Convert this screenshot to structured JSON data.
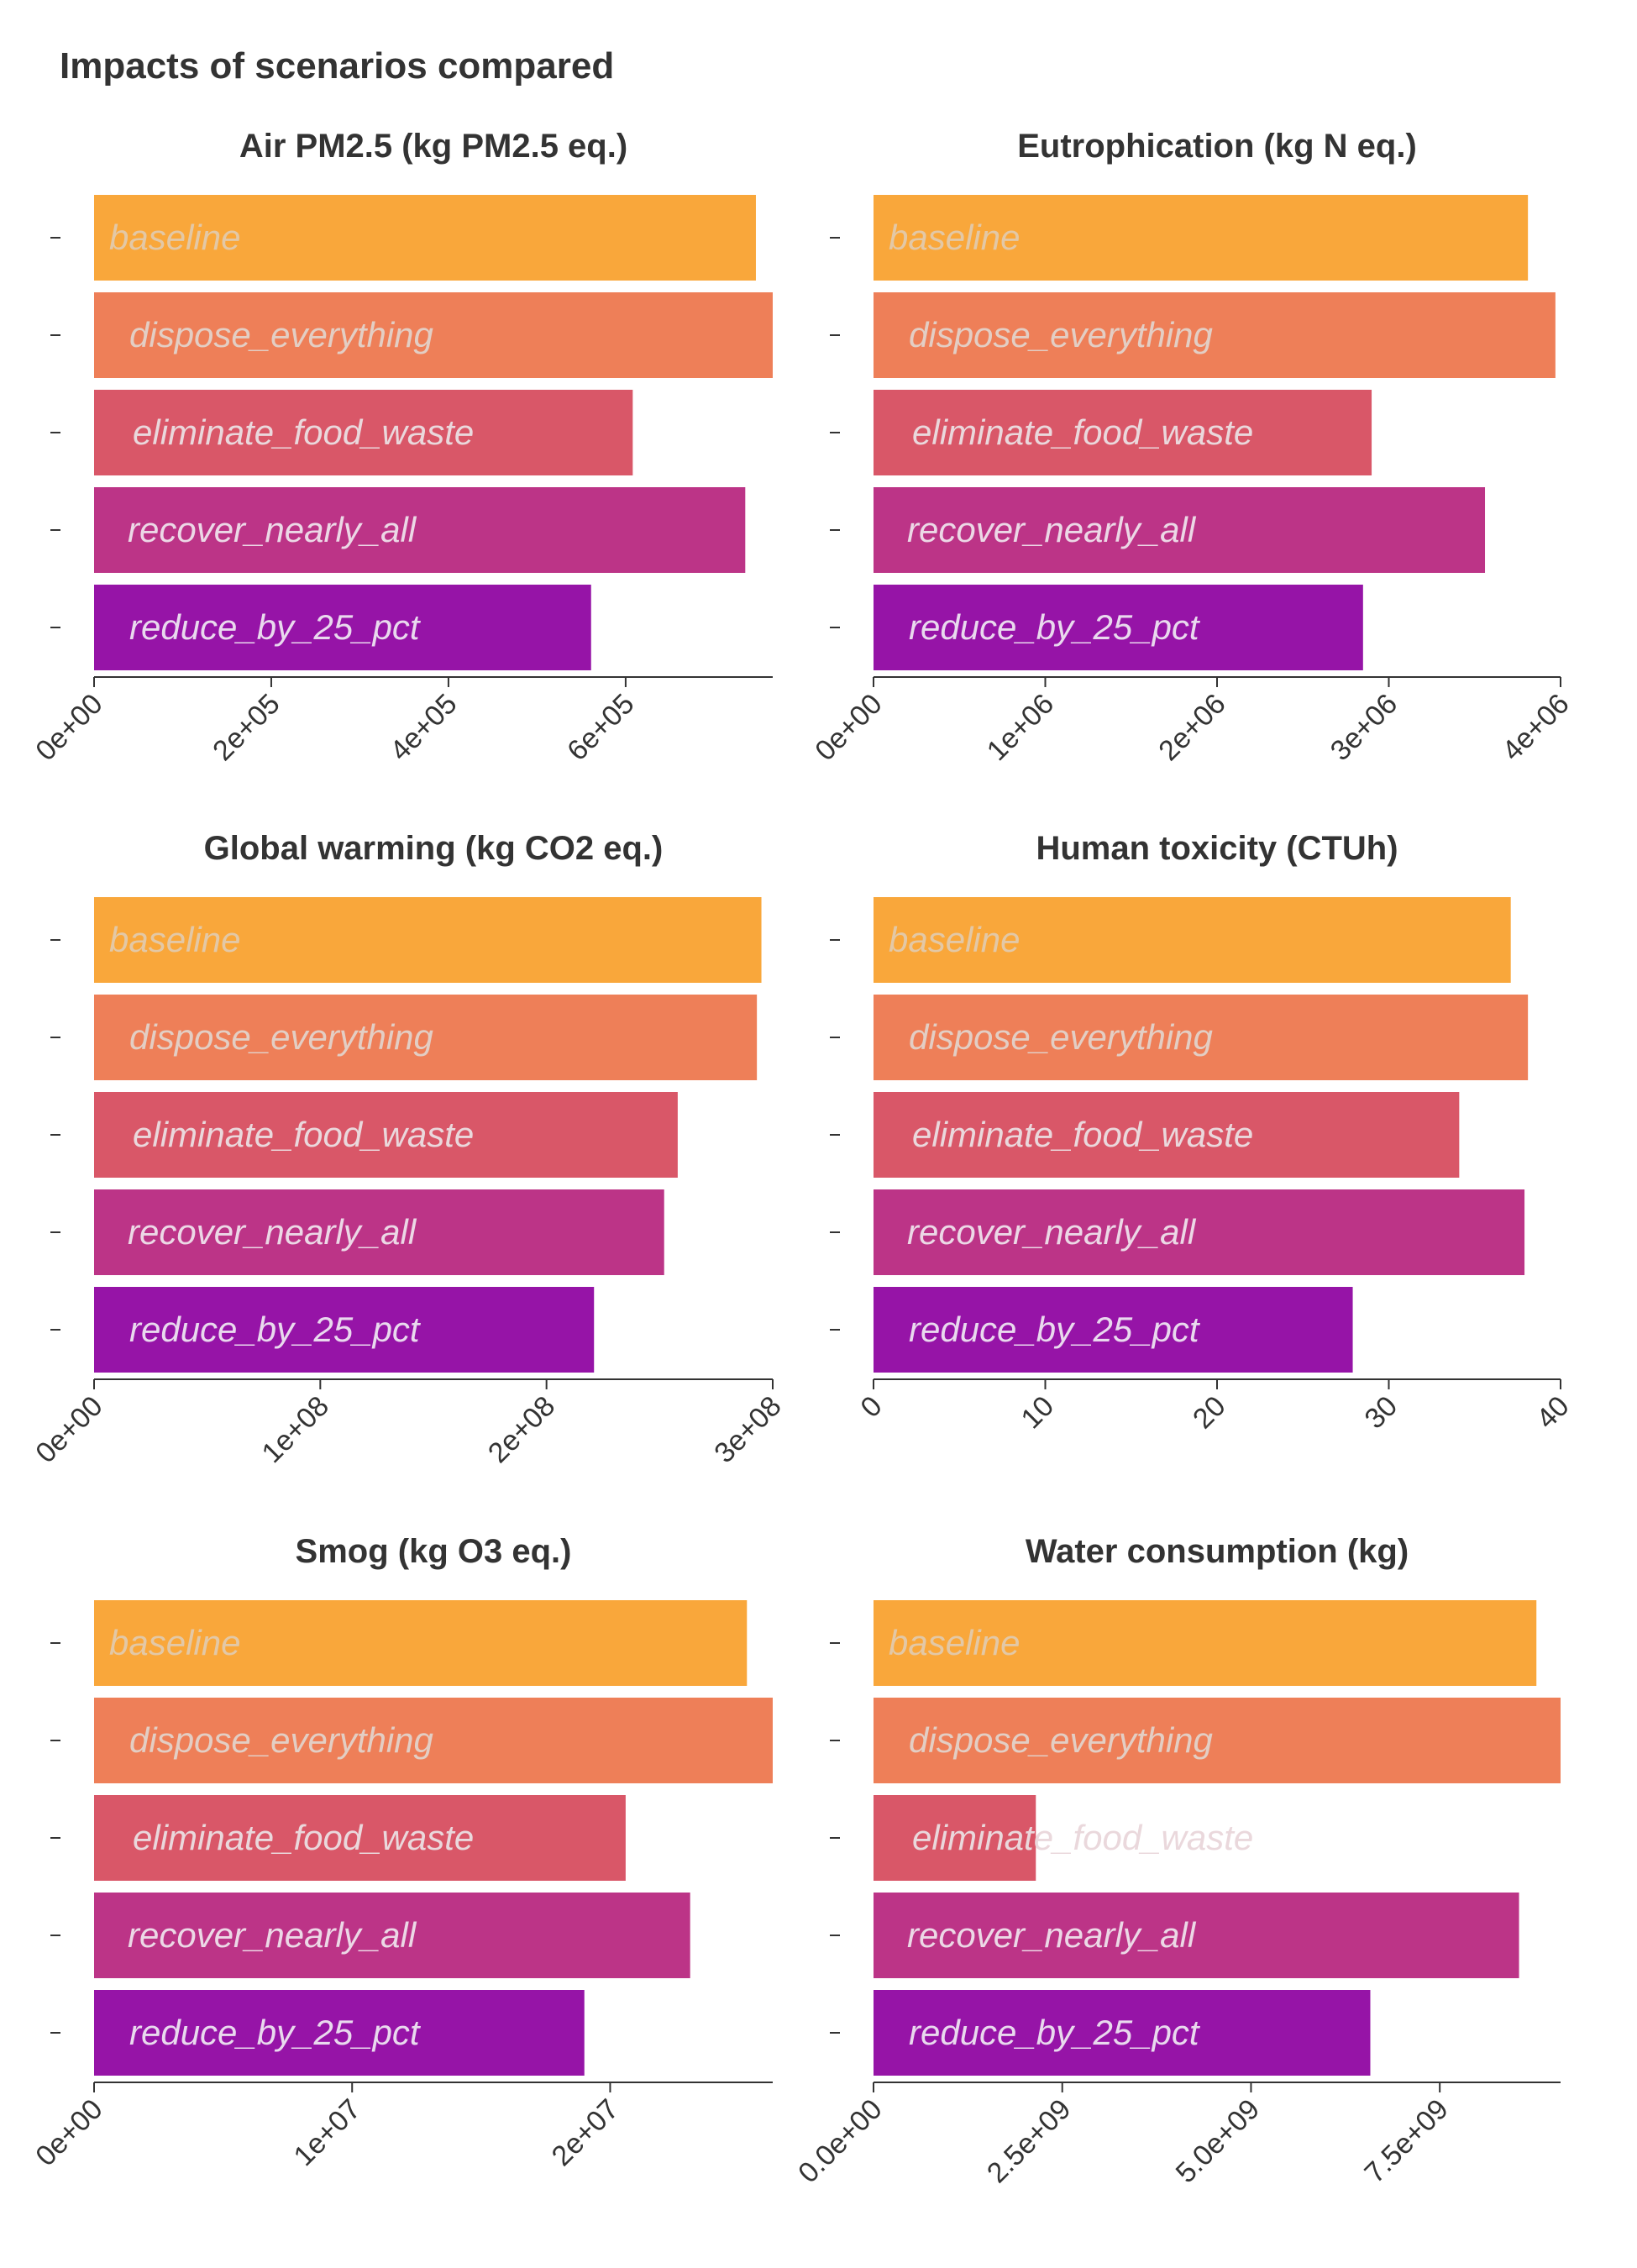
{
  "title": "Impacts of scenarios compared",
  "scenario_colors": {
    "baseline": "#F9A73B",
    "dispose_everything": "#EE7F58",
    "eliminate_food_waste": "#D95768",
    "recover_nearly_all": "#BC3487",
    "reduce_by_25_pct": "#9614A7"
  },
  "chart_data": [
    {
      "type": "bar",
      "title": "Air PM2.5 (kg PM2.5 eq.)",
      "categories": [
        "baseline",
        "dispose_everything",
        "eliminate_food_waste",
        "recover_nearly_all",
        "reduce_by_25_pct"
      ],
      "values": [
        747000,
        766000,
        608000,
        735000,
        561000
      ],
      "xlim": [
        0,
        766000
      ],
      "ticks": [
        0,
        200000,
        400000,
        600000
      ],
      "tick_labels": [
        "0e+00",
        "2e+05",
        "4e+05",
        "6e+05"
      ]
    },
    {
      "type": "bar",
      "title": "Eutrophication (kg N eq.)",
      "categories": [
        "baseline",
        "dispose_everything",
        "eliminate_food_waste",
        "recover_nearly_all",
        "reduce_by_25_pct"
      ],
      "values": [
        3810000,
        3970000,
        2900000,
        3560000,
        2850000
      ],
      "xlim": [
        0,
        4000000
      ],
      "ticks": [
        0,
        1000000,
        2000000,
        3000000,
        4000000
      ],
      "tick_labels": [
        "0e+00",
        "1e+06",
        "2e+06",
        "3e+06",
        "4e+06"
      ]
    },
    {
      "type": "bar",
      "title": "Global warming (kg CO2 eq.)",
      "categories": [
        "baseline",
        "dispose_everything",
        "eliminate_food_waste",
        "recover_nearly_all",
        "reduce_by_25_pct"
      ],
      "values": [
        295000000,
        293000000,
        258000000,
        252000000,
        221000000
      ],
      "xlim": [
        0,
        300000000
      ],
      "ticks": [
        0,
        100000000,
        200000000,
        300000000
      ],
      "tick_labels": [
        "0e+00",
        "1e+08",
        "2e+08",
        "3e+08"
      ]
    },
    {
      "type": "bar",
      "title": "Human toxicity (CTUh)",
      "categories": [
        "baseline",
        "dispose_everything",
        "eliminate_food_waste",
        "recover_nearly_all",
        "reduce_by_25_pct"
      ],
      "values": [
        37.1,
        38.1,
        34.1,
        37.9,
        27.9
      ],
      "xlim": [
        0,
        40
      ],
      "ticks": [
        0,
        10,
        20,
        30,
        40
      ],
      "tick_labels": [
        "0",
        "10",
        "20",
        "30",
        "40"
      ]
    },
    {
      "type": "bar",
      "title": "Smog (kg O3 eq.)",
      "categories": [
        "baseline",
        "dispose_everything",
        "eliminate_food_waste",
        "recover_nearly_all",
        "reduce_by_25_pct"
      ],
      "values": [
        25300000,
        26300000,
        20600000,
        23100000,
        19000000
      ],
      "xlim": [
        0,
        26300000
      ],
      "ticks": [
        0,
        10000000,
        20000000
      ],
      "tick_labels": [
        "0e+00",
        "1e+07",
        "2e+07"
      ]
    },
    {
      "type": "bar",
      "title": "Water consumption (kg)",
      "categories": [
        "baseline",
        "dispose_everything",
        "eliminate_food_waste",
        "recover_nearly_all",
        "reduce_by_25_pct"
      ],
      "values": [
        8780000000,
        9100000000,
        2150000000,
        8550000000,
        6580000000
      ],
      "xlim": [
        0,
        9100000000
      ],
      "ticks": [
        0,
        2500000000,
        5000000000,
        7500000000
      ],
      "tick_labels": [
        "0.0e+00",
        "2.5e+09",
        "5.0e+09",
        "7.5e+09"
      ]
    }
  ]
}
